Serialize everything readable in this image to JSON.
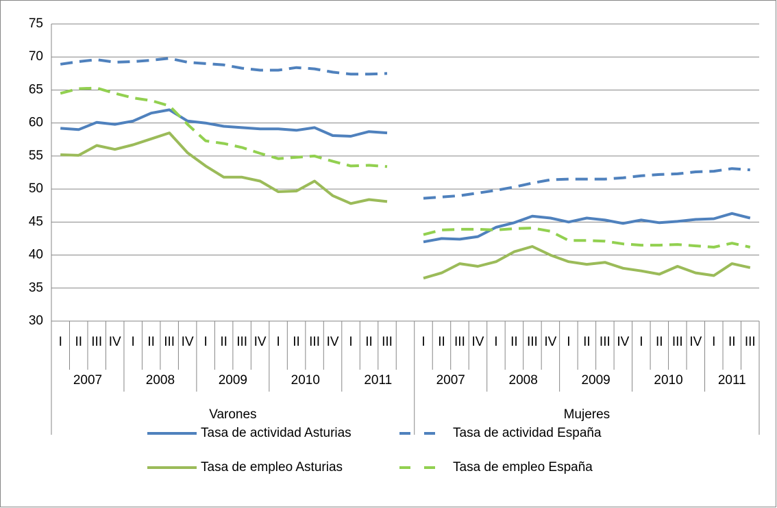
{
  "chart_data": {
    "type": "line",
    "categories": [
      "I",
      "II",
      "III",
      "IV",
      "I",
      "II",
      "III",
      "IV",
      "I",
      "II",
      "III",
      "IV",
      "I",
      "II",
      "III",
      "IV",
      "I",
      "II",
      "III",
      null,
      "I",
      "II",
      "III",
      "IV",
      "I",
      "II",
      "III",
      "IV",
      "I",
      "II",
      "III",
      "IV",
      "I",
      "II",
      "III",
      "IV",
      "I",
      "II",
      "III"
    ],
    "groups": [
      {
        "name": "Varones",
        "years": [
          "2007",
          "2008",
          "2009",
          "2010",
          "2011"
        ]
      },
      {
        "name": "Mujeres",
        "years": [
          "2007",
          "2008",
          "2009",
          "2010",
          "2011"
        ]
      }
    ],
    "ylim": [
      30,
      75
    ],
    "yticks": [
      30,
      35,
      40,
      45,
      50,
      55,
      60,
      65,
      70,
      75
    ],
    "grid": true,
    "series": [
      {
        "name": "Tasa de actividad Asturias",
        "color": "#4f81bd",
        "style": "solid",
        "values": [
          59.2,
          59.0,
          60.1,
          59.8,
          60.3,
          61.5,
          62.0,
          60.3,
          60.0,
          59.5,
          59.3,
          59.1,
          59.1,
          58.9,
          59.3,
          58.1,
          58.0,
          58.7,
          58.5,
          null,
          42.0,
          42.5,
          42.4,
          42.8,
          44.2,
          44.9,
          45.9,
          45.6,
          45.0,
          45.6,
          45.3,
          44.8,
          45.3,
          44.9,
          45.1,
          45.4,
          45.5,
          46.3,
          45.6
        ]
      },
      {
        "name": "Tasa de actividad España",
        "color": "#4f81bd",
        "style": "dashed",
        "values": [
          68.9,
          69.3,
          69.6,
          69.2,
          69.3,
          69.5,
          69.8,
          69.2,
          69.0,
          68.8,
          68.3,
          68.0,
          68.0,
          68.4,
          68.2,
          67.7,
          67.4,
          67.4,
          67.5,
          null,
          48.6,
          48.8,
          49.0,
          49.4,
          49.8,
          50.3,
          50.9,
          51.4,
          51.5,
          51.5,
          51.5,
          51.7,
          52.0,
          52.2,
          52.3,
          52.6,
          52.7,
          53.1,
          52.9
        ]
      },
      {
        "name": "Tasa de empleo Asturias",
        "color": "#9bbb59",
        "style": "solid",
        "values": [
          55.2,
          55.1,
          56.6,
          56.0,
          56.7,
          57.6,
          58.5,
          55.5,
          53.5,
          51.8,
          51.8,
          51.2,
          49.6,
          49.7,
          51.2,
          49.0,
          47.8,
          48.4,
          48.1,
          null,
          36.5,
          37.3,
          38.7,
          38.3,
          39.0,
          40.5,
          41.3,
          40.0,
          39.0,
          38.6,
          38.9,
          38.0,
          37.6,
          37.1,
          38.3,
          37.3,
          36.9,
          38.7,
          38.1
        ]
      },
      {
        "name": "Tasa de empleo España",
        "color": "#92d050",
        "style": "dashed",
        "values": [
          64.5,
          65.2,
          65.3,
          64.5,
          63.8,
          63.4,
          62.6,
          59.8,
          57.3,
          56.9,
          56.3,
          55.4,
          54.6,
          54.8,
          55.0,
          54.2,
          53.5,
          53.6,
          53.4,
          null,
          43.1,
          43.8,
          43.9,
          43.9,
          43.8,
          44.0,
          44.1,
          43.6,
          42.2,
          42.2,
          42.1,
          41.7,
          41.5,
          41.5,
          41.6,
          41.4,
          41.2,
          41.8,
          41.2
        ]
      }
    ]
  }
}
